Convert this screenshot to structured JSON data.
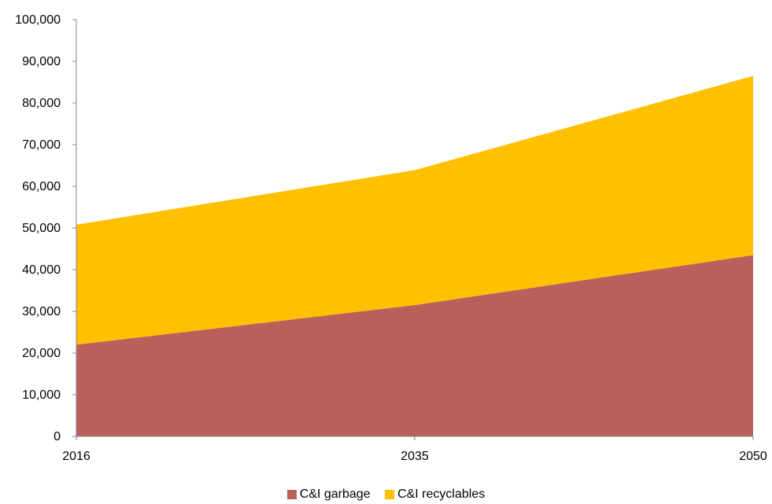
{
  "chart_data": {
    "type": "area",
    "stacked": true,
    "x": [
      "2016",
      "2035",
      "2050"
    ],
    "series": [
      {
        "name": "C&I garbage",
        "values": [
          22000,
          31500,
          43500
        ],
        "color": "#B9605D"
      },
      {
        "name": "C&I recyclables",
        "values": [
          28800,
          32400,
          43000
        ],
        "color": "#FFC000"
      }
    ],
    "ylim": [
      0,
      100000
    ],
    "yticks": [
      "0",
      "10,000",
      "20,000",
      "30,000",
      "40,000",
      "50,000",
      "60,000",
      "70,000",
      "80,000",
      "90,000",
      "100,000"
    ],
    "xticks": [
      "2016",
      "2035",
      "2050"
    ],
    "grid": false,
    "legend_position": "bottom",
    "axis_color": "#868686"
  }
}
